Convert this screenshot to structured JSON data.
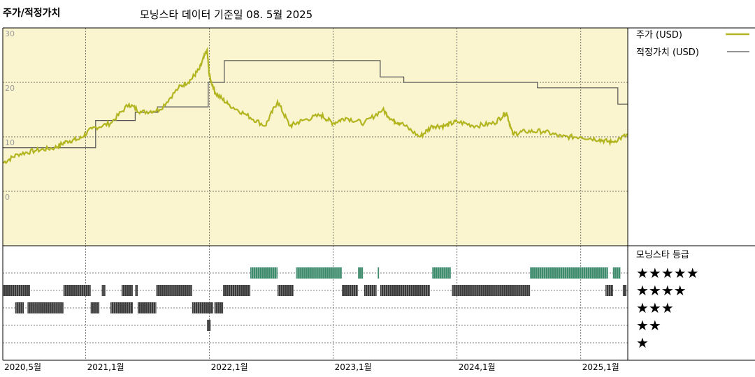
{
  "header": {
    "title": "주가/적정가치",
    "subtitle": "모닝스타 데이터 기준일 08. 5월 2025"
  },
  "colors": {
    "panel_bg": "#faf5cf",
    "price": "#b2b520",
    "fair_value": "#555555",
    "rating_5": "#3d8a6c",
    "rating_other": "#3a3a3a"
  },
  "legend": {
    "price": "주가 (USD)",
    "fair_value": "적정가치 (USD)",
    "rating_title": "모닝스타 등급"
  },
  "chart_data": {
    "type": "line",
    "x_ticks": [
      "2020,5월",
      "2021,1월",
      "2022,1월",
      "2023,1월",
      "2024,1월",
      "2025,1월"
    ],
    "x_tick_values": [
      2020.33,
      2021.0,
      2022.0,
      2023.0,
      2024.0,
      2025.0
    ],
    "xlim": [
      2020.33,
      2025.38
    ],
    "y_ticks": [
      "30",
      "20",
      "10",
      "0"
    ],
    "y_tick_values": [
      30,
      20,
      10,
      0
    ],
    "ylim": [
      -10,
      30
    ],
    "series": [
      {
        "name": "주가 (USD)",
        "x": [
          2020.33,
          2020.45,
          2020.6,
          2020.75,
          2020.85,
          2020.95,
          2021.05,
          2021.2,
          2021.35,
          2021.45,
          2021.6,
          2021.75,
          2021.85,
          2021.92,
          2021.98,
          2022.0,
          2022.05,
          2022.15,
          2022.3,
          2022.45,
          2022.55,
          2022.65,
          2022.75,
          2022.9,
          2023.0,
          2023.1,
          2023.25,
          2023.4,
          2023.48,
          2023.55,
          2023.7,
          2023.8,
          2023.9,
          2024.0,
          2024.15,
          2024.3,
          2024.4,
          2024.45,
          2024.55,
          2024.7,
          2024.85,
          2025.0,
          2025.15,
          2025.25,
          2025.38
        ],
        "values": [
          5.2,
          6.8,
          7.5,
          8.0,
          9.2,
          9.6,
          11.5,
          12.5,
          16.0,
          14.5,
          15.0,
          19.0,
          20.5,
          22.5,
          26.0,
          21.0,
          18.0,
          16.0,
          14.0,
          12.0,
          16.5,
          12.0,
          13.0,
          14.0,
          12.5,
          13.5,
          12.5,
          15.0,
          13.0,
          12.5,
          10.0,
          12.0,
          12.0,
          12.8,
          12.0,
          12.5,
          14.5,
          10.5,
          11.0,
          11.0,
          10.0,
          10.0,
          9.5,
          9.0,
          10.4
        ]
      },
      {
        "name": "적정가치 (USD)",
        "x": [
          2020.33,
          2020.82,
          2021.08,
          2021.4,
          2021.58,
          2021.99,
          2022.12,
          2023.1,
          2023.38,
          2023.57,
          2023.83,
          2024.65,
          2025.3,
          2025.38
        ],
        "values": [
          8.0,
          8.0,
          13.0,
          14.5,
          15.5,
          20.0,
          24.0,
          24.0,
          21.0,
          20.0,
          20.0,
          19.0,
          16.0,
          16.0
        ],
        "step": true
      }
    ],
    "ratings": {
      "stars": [
        "★★★★★",
        "★★★★",
        "★★★",
        "★★",
        "★"
      ],
      "levels": [
        5,
        4,
        3,
        2,
        1
      ],
      "segments": [
        {
          "rating": 4,
          "from": 2020.33,
          "to": 2020.55
        },
        {
          "rating": 3,
          "from": 2020.43,
          "to": 2020.5
        },
        {
          "rating": 3,
          "from": 2020.53,
          "to": 2020.82
        },
        {
          "rating": 4,
          "from": 2020.82,
          "to": 2021.04
        },
        {
          "rating": 3,
          "from": 2021.04,
          "to": 2021.11
        },
        {
          "rating": 4,
          "from": 2021.13,
          "to": 2021.16
        },
        {
          "rating": 3,
          "from": 2021.2,
          "to": 2021.38
        },
        {
          "rating": 4,
          "from": 2021.29,
          "to": 2021.38
        },
        {
          "rating": 4,
          "from": 2021.4,
          "to": 2021.42
        },
        {
          "rating": 3,
          "from": 2021.42,
          "to": 2021.57
        },
        {
          "rating": 4,
          "from": 2021.57,
          "to": 2021.86
        },
        {
          "rating": 3,
          "from": 2021.86,
          "to": 2022.03
        },
        {
          "rating": 2,
          "from": 2021.98,
          "to": 2022.01
        },
        {
          "rating": 3,
          "from": 2022.04,
          "to": 2022.11
        },
        {
          "rating": 4,
          "from": 2022.11,
          "to": 2022.33
        },
        {
          "rating": 5,
          "from": 2022.33,
          "to": 2022.55
        },
        {
          "rating": 4,
          "from": 2022.55,
          "to": 2022.68
        },
        {
          "rating": 5,
          "from": 2022.7,
          "to": 2023.07
        },
        {
          "rating": 4,
          "from": 2023.07,
          "to": 2023.2
        },
        {
          "rating": 5,
          "from": 2023.2,
          "to": 2023.24
        },
        {
          "rating": 4,
          "from": 2023.25,
          "to": 2023.35
        },
        {
          "rating": 5,
          "from": 2023.36,
          "to": 2023.37
        },
        {
          "rating": 4,
          "from": 2023.38,
          "to": 2023.78
        },
        {
          "rating": 5,
          "from": 2023.8,
          "to": 2023.95
        },
        {
          "rating": 4,
          "from": 2023.96,
          "to": 2024.59
        },
        {
          "rating": 5,
          "from": 2024.59,
          "to": 2025.22
        },
        {
          "rating": 4,
          "from": 2025.2,
          "to": 2025.26
        },
        {
          "rating": 5,
          "from": 2025.26,
          "to": 2025.32
        },
        {
          "rating": 4,
          "from": 2025.34,
          "to": 2025.37
        }
      ]
    }
  }
}
